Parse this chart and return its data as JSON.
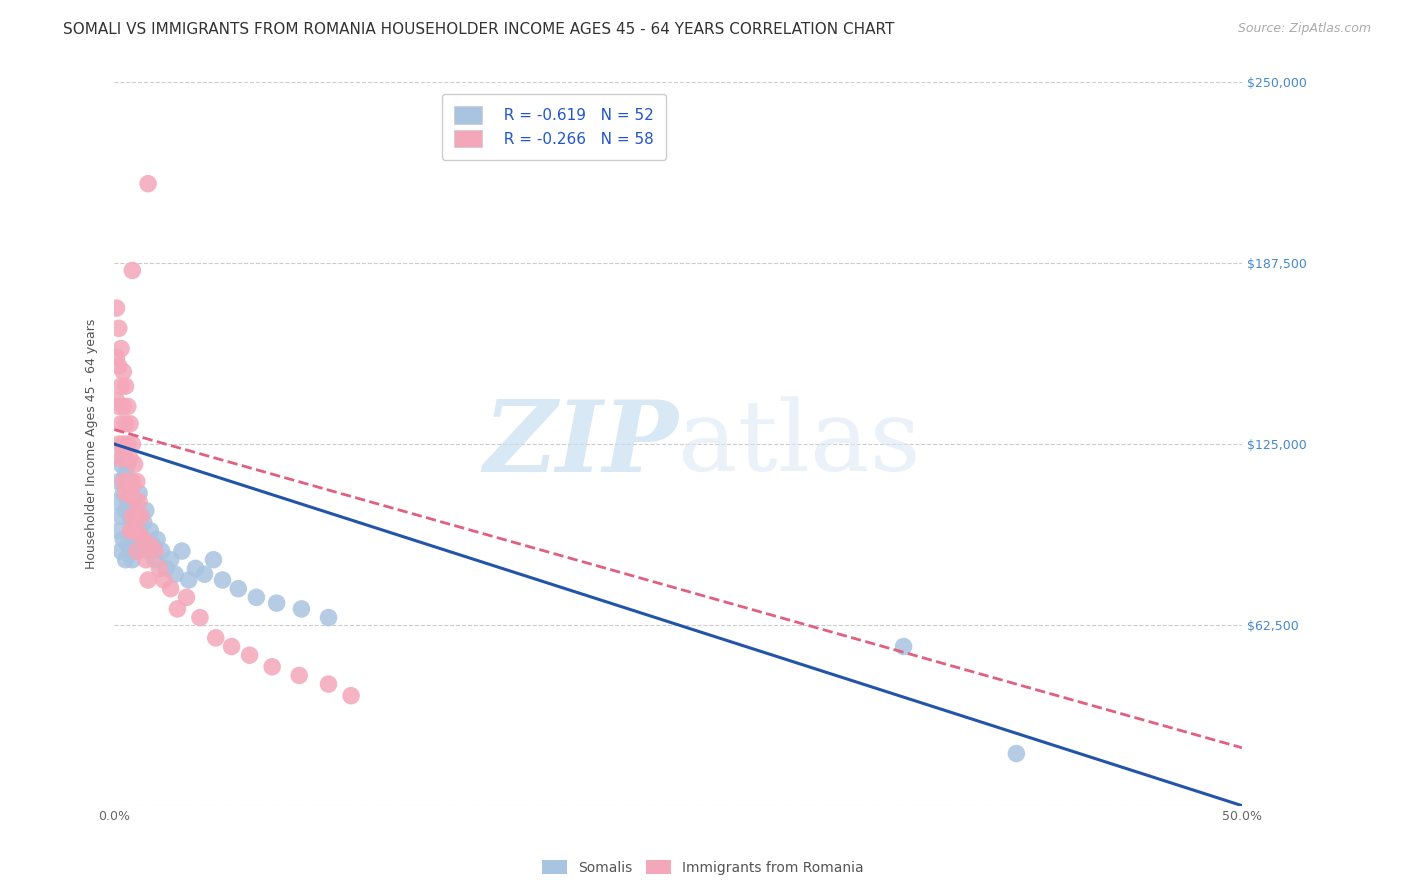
{
  "title": "SOMALI VS IMMIGRANTS FROM ROMANIA HOUSEHOLDER INCOME AGES 45 - 64 YEARS CORRELATION CHART",
  "source": "Source: ZipAtlas.com",
  "ylabel": "Householder Income Ages 45 - 64 years",
  "x_min": 0.0,
  "x_max": 0.5,
  "y_min": 0,
  "y_max": 250000,
  "y_ticks": [
    0,
    62500,
    125000,
    187500,
    250000
  ],
  "y_tick_labels": [
    "",
    "$62,500",
    "$125,000",
    "$187,500",
    "$250,000"
  ],
  "x_ticks": [
    0.0,
    0.1,
    0.2,
    0.3,
    0.4,
    0.5
  ],
  "x_tick_labels": [
    "0.0%",
    "",
    "",
    "",
    "",
    "50.0%"
  ],
  "somali_color": "#a8c4e0",
  "romania_color": "#f4a7b9",
  "somali_line_color": "#2255aa",
  "romania_line_color": "#e06080",
  "legend_r_somali": "R = -0.619",
  "legend_n_somali": "N = 52",
  "legend_r_romania": "R = -0.266",
  "legend_n_romania": "N = 58",
  "watermark_zip": "ZIP",
  "watermark_atlas": "atlas",
  "background_color": "#ffffff",
  "grid_color": "#cccccc",
  "somali_scatter_x": [
    0.001,
    0.002,
    0.002,
    0.003,
    0.003,
    0.003,
    0.004,
    0.004,
    0.004,
    0.005,
    0.005,
    0.005,
    0.006,
    0.006,
    0.006,
    0.007,
    0.007,
    0.007,
    0.008,
    0.008,
    0.008,
    0.009,
    0.009,
    0.01,
    0.01,
    0.011,
    0.011,
    0.012,
    0.013,
    0.014,
    0.015,
    0.016,
    0.017,
    0.018,
    0.019,
    0.021,
    0.023,
    0.025,
    0.027,
    0.03,
    0.033,
    0.036,
    0.04,
    0.044,
    0.048,
    0.055,
    0.063,
    0.072,
    0.083,
    0.095,
    0.35,
    0.4
  ],
  "somali_scatter_y": [
    105000,
    95000,
    112000,
    88000,
    100000,
    118000,
    92000,
    108000,
    122000,
    85000,
    102000,
    115000,
    90000,
    105000,
    118000,
    88000,
    100000,
    112000,
    85000,
    98000,
    110000,
    92000,
    105000,
    88000,
    100000,
    95000,
    108000,
    92000,
    98000,
    102000,
    88000,
    95000,
    90000,
    85000,
    92000,
    88000,
    82000,
    85000,
    80000,
    88000,
    78000,
    82000,
    80000,
    85000,
    78000,
    75000,
    72000,
    70000,
    68000,
    65000,
    55000,
    18000
  ],
  "romania_scatter_x": [
    0.001,
    0.001,
    0.001,
    0.002,
    0.002,
    0.002,
    0.002,
    0.003,
    0.003,
    0.003,
    0.003,
    0.004,
    0.004,
    0.004,
    0.004,
    0.005,
    0.005,
    0.005,
    0.005,
    0.006,
    0.006,
    0.006,
    0.007,
    0.007,
    0.007,
    0.007,
    0.008,
    0.008,
    0.008,
    0.009,
    0.009,
    0.009,
    0.01,
    0.01,
    0.01,
    0.011,
    0.011,
    0.012,
    0.013,
    0.014,
    0.015,
    0.016,
    0.018,
    0.02,
    0.022,
    0.025,
    0.028,
    0.032,
    0.038,
    0.045,
    0.052,
    0.06,
    0.07,
    0.082,
    0.095,
    0.105,
    0.015,
    0.008
  ],
  "romania_scatter_y": [
    172000,
    155000,
    140000,
    165000,
    152000,
    138000,
    125000,
    158000,
    145000,
    132000,
    120000,
    150000,
    138000,
    125000,
    112000,
    145000,
    132000,
    120000,
    108000,
    138000,
    125000,
    112000,
    132000,
    120000,
    108000,
    95000,
    125000,
    112000,
    100000,
    118000,
    106000,
    95000,
    112000,
    100000,
    88000,
    105000,
    94000,
    100000,
    92000,
    85000,
    78000,
    90000,
    88000,
    82000,
    78000,
    75000,
    68000,
    72000,
    65000,
    58000,
    55000,
    52000,
    48000,
    45000,
    42000,
    38000,
    215000,
    185000
  ],
  "title_fontsize": 11,
  "axis_label_fontsize": 9,
  "tick_label_fontsize": 9,
  "legend_fontsize": 11
}
